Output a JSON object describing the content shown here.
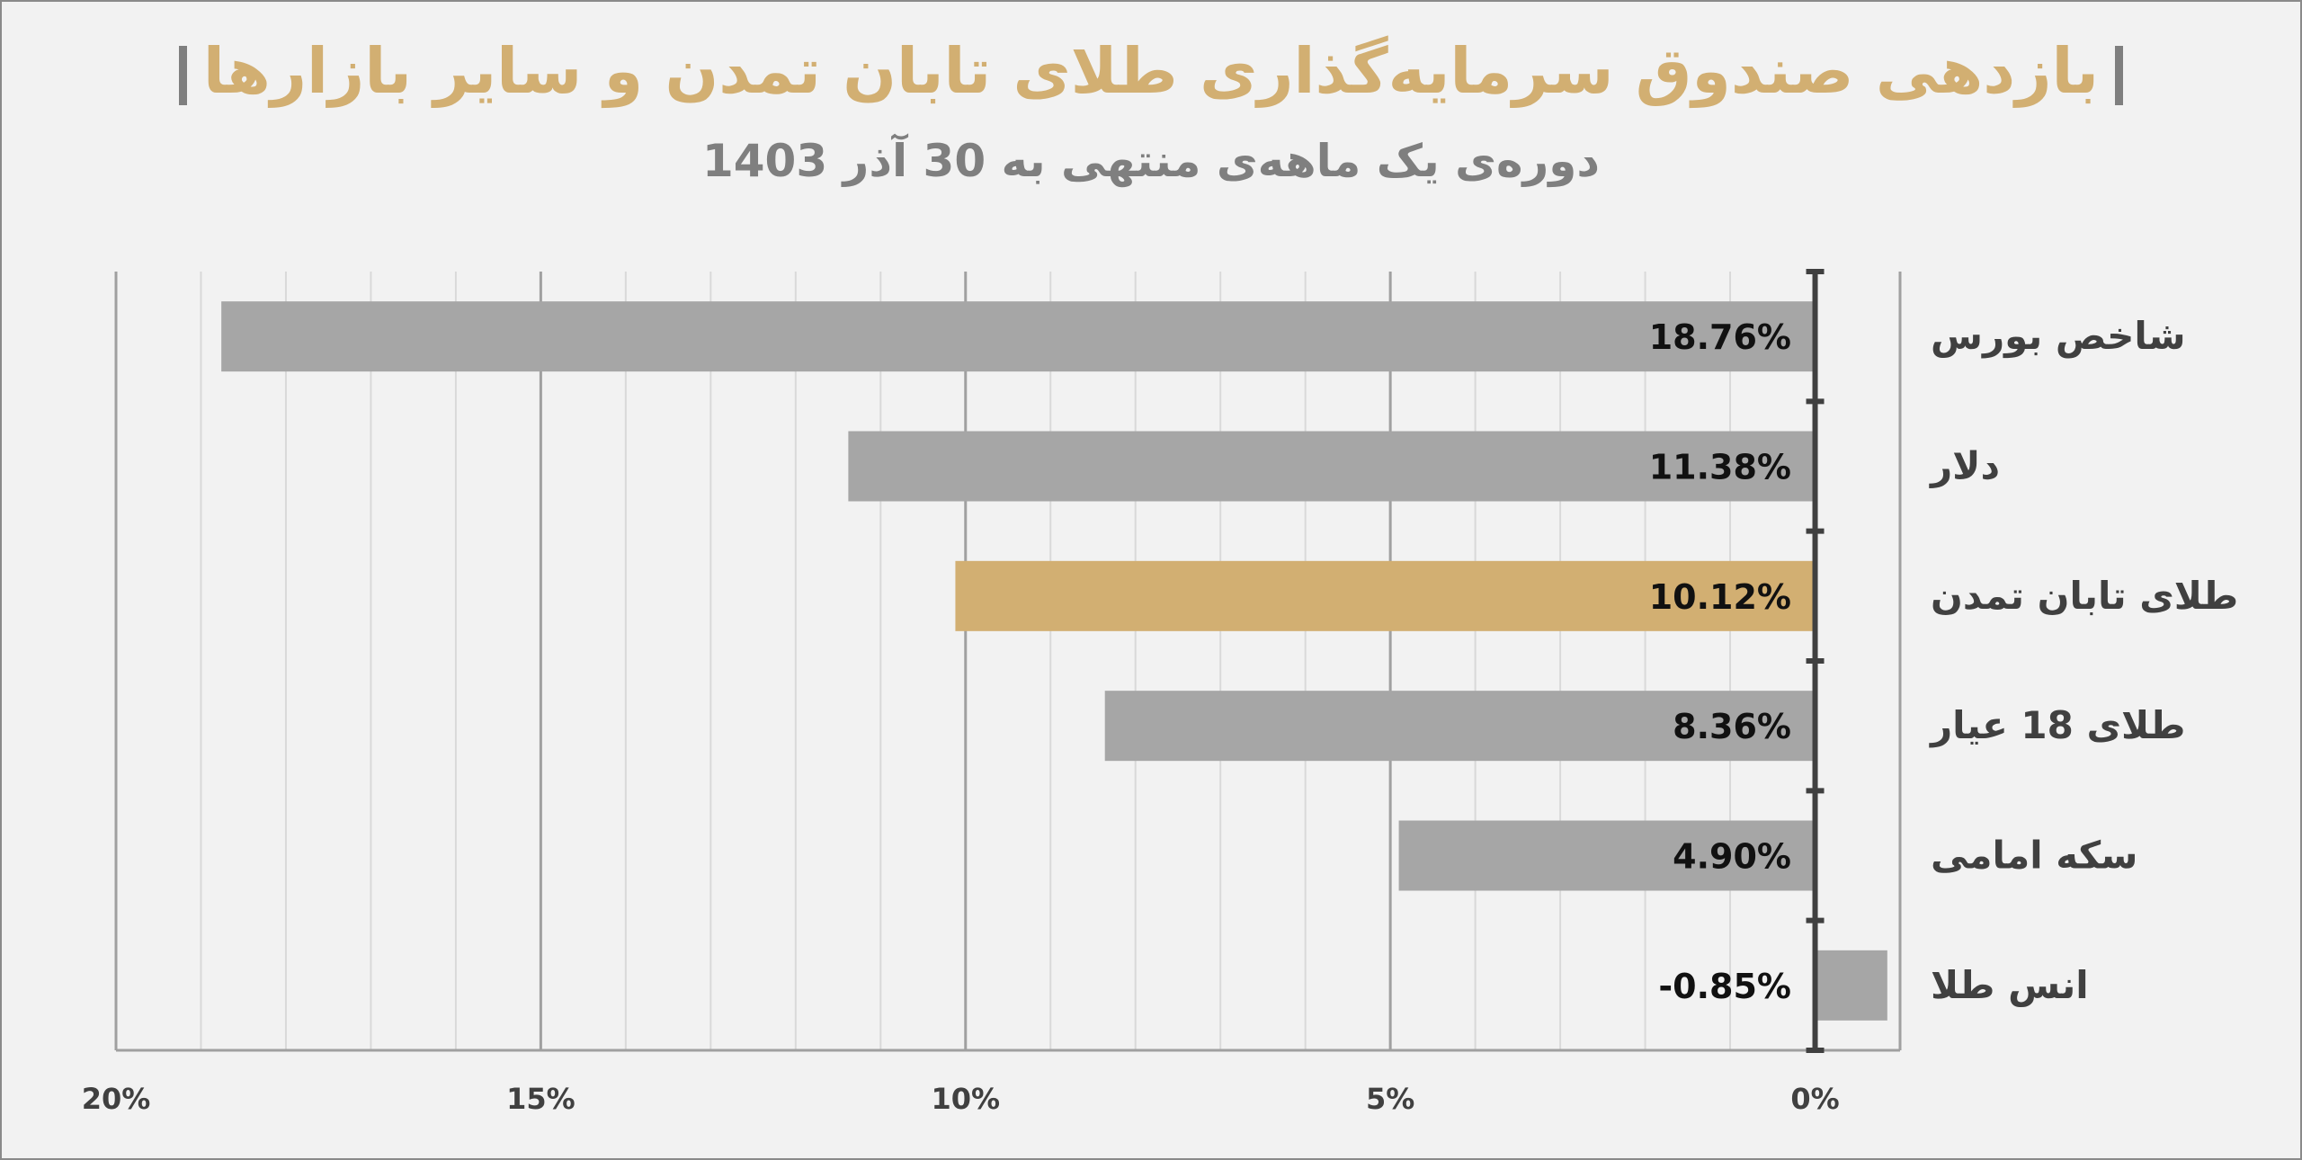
{
  "chart_data": {
    "type": "bar",
    "orientation": "horizontal",
    "title": "بازدهی صندوق سرمایه‌گذاری طلای تابان تمدن و سایر بازارها",
    "subtitle": "دوره‌ی یک ماهه‌ی منتهی به 30 آذر 1403",
    "categories": [
      "شاخص بورس",
      "دلار",
      "طلای تابان تمدن",
      "طلای 18 عیار",
      "سکه امامی",
      "انس طلا"
    ],
    "values": [
      18.76,
      11.38,
      10.12,
      8.36,
      4.9,
      -0.85
    ],
    "data_labels": [
      "18.76%",
      "11.38%",
      "10.12%",
      "8.36%",
      "4.90%",
      "-0.85%"
    ],
    "highlight_index": 2,
    "x_axis": {
      "reversed": true,
      "range": [
        -1,
        20
      ],
      "ticks": [
        0,
        5,
        10,
        15,
        20
      ],
      "tick_labels": [
        "0%",
        "5%",
        "10%",
        "15%",
        "20%"
      ]
    },
    "grid": true,
    "colors": {
      "bar": "#a6a6a6",
      "highlight": "#d2af72",
      "title": "#d2af72",
      "subtitle": "#7f7f7f",
      "background": "#f2f2f2"
    }
  }
}
